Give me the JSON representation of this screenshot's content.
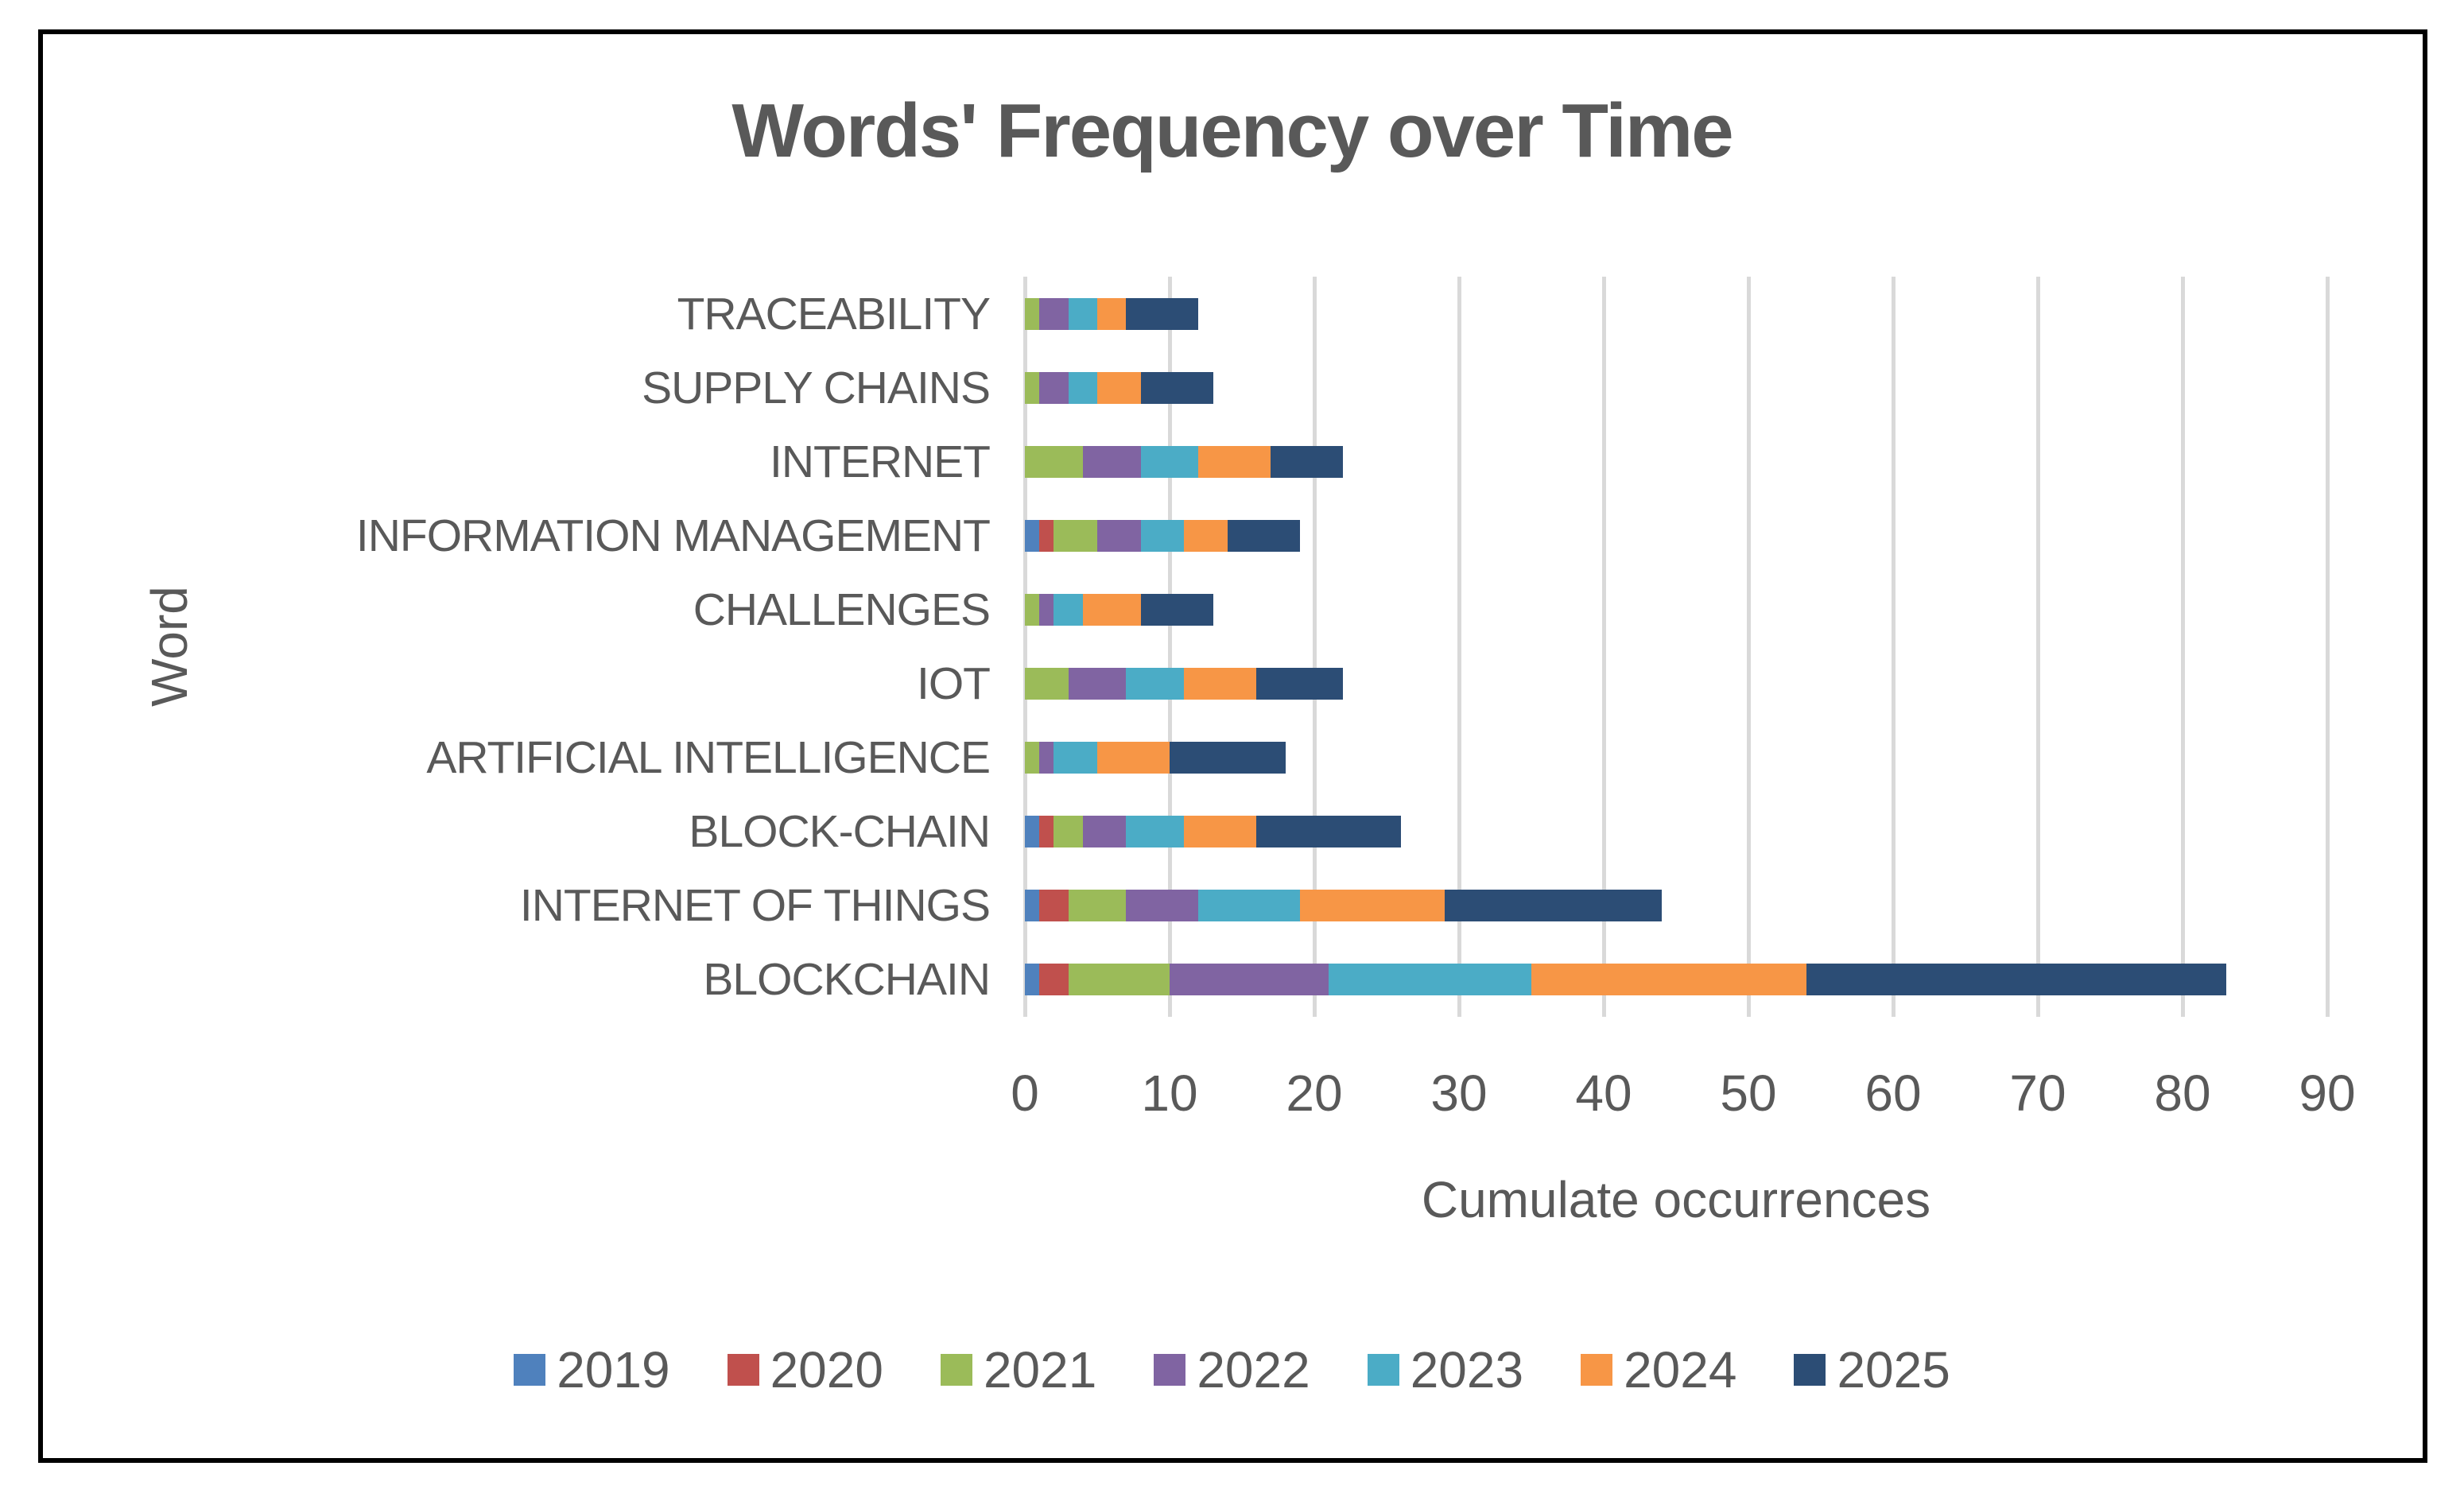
{
  "chart_data": {
    "type": "bar",
    "variant": "horizontal-stacked",
    "title": "Words' Frequency over Time",
    "xlabel": "Cumulate occurrences",
    "ylabel": "Word",
    "xlim": [
      0,
      90
    ],
    "xticks": [
      0,
      10,
      20,
      30,
      40,
      50,
      60,
      70,
      80,
      90
    ],
    "grid": "vertical-on",
    "legend_position": "bottom",
    "categories": [
      "TRACEABILITY",
      "SUPPLY CHAINS",
      "INTERNET",
      "INFORMATION MANAGEMENT",
      "CHALLENGES",
      "IOT",
      "ARTIFICIAL INTELLIGENCE",
      "BLOCK-CHAIN",
      "INTERNET OF THINGS",
      "BLOCKCHAIN"
    ],
    "series": [
      {
        "name": "2019",
        "color": "#4F81BD",
        "values": [
          0,
          0,
          0,
          1,
          0,
          0,
          0,
          1,
          1,
          1
        ]
      },
      {
        "name": "2020",
        "color": "#C0504D",
        "values": [
          0,
          0,
          0,
          1,
          0,
          0,
          0,
          1,
          2,
          2
        ]
      },
      {
        "name": "2021",
        "color": "#9BBB59",
        "values": [
          1,
          1,
          4,
          3,
          1,
          3,
          1,
          2,
          4,
          7
        ]
      },
      {
        "name": "2022",
        "color": "#8064A2",
        "values": [
          2,
          2,
          4,
          3,
          1,
          4,
          1,
          3,
          5,
          11
        ]
      },
      {
        "name": "2023",
        "color": "#4BACC6",
        "values": [
          2,
          2,
          4,
          3,
          2,
          4,
          3,
          4,
          7,
          14
        ]
      },
      {
        "name": "2024",
        "color": "#F79646",
        "values": [
          2,
          3,
          5,
          3,
          4,
          5,
          5,
          5,
          10,
          19
        ]
      },
      {
        "name": "2025",
        "color": "#2C4D75",
        "values": [
          5,
          5,
          5,
          5,
          5,
          6,
          8,
          10,
          15,
          29
        ]
      }
    ]
  },
  "colors": {
    "text": "#595959",
    "gridline": "#D9D9D9",
    "frame_border": "#000000",
    "background": "#FFFFFF"
  }
}
